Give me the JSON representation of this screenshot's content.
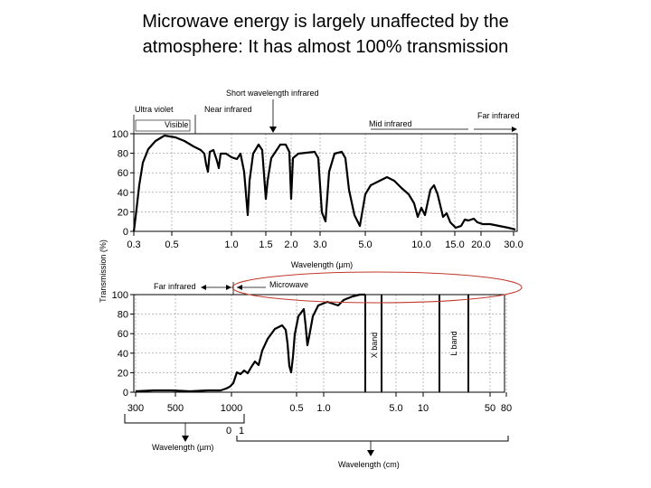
{
  "title": {
    "line1": "Microwave energy is largely unaffected by the",
    "line2": "atmosphere: It has almost 100% transmission"
  },
  "chart_data": [
    {
      "type": "line",
      "panel": "upper",
      "ylabel": "Transmission (%)",
      "xlabel": "Wavelength (µm)",
      "ylim": [
        0,
        100
      ],
      "yticks": [
        "0",
        "20",
        "40",
        "60",
        "80",
        "100"
      ],
      "xticks": [
        "0.3",
        "0.5",
        "1.0",
        "1.5",
        "2.0",
        "3.0",
        "5.0",
        "10.0",
        "15.0",
        "20.0",
        "30.0"
      ],
      "region_labels": [
        "Ultra violet",
        "Visible",
        "Near infrared",
        "Short wavelength infrared",
        "Mid infrared",
        "Far infrared"
      ],
      "grid": true
    },
    {
      "type": "line",
      "panel": "lower",
      "ylabel": "Transmission (%)",
      "ylim": [
        0,
        100
      ],
      "yticks": [
        "0",
        "20",
        "40",
        "60",
        "80",
        "100"
      ],
      "xticks": [
        "300",
        "500",
        "1000",
        "0.5",
        "1.0",
        "5.0",
        "10",
        "50",
        "80"
      ],
      "secondary_ticks": [
        "0",
        "1"
      ],
      "xlabel_um": "Wavelength (µm)",
      "xlabel_cm": "Wavelength (cm)",
      "region_labels": [
        "Far infrared",
        "Microwave"
      ],
      "band_labels": [
        "X band",
        "L band"
      ],
      "highlight": "Microwave",
      "grid": true
    }
  ],
  "colors": {
    "highlight": "#c0392b",
    "curve": "#000000",
    "grid": "#555555"
  }
}
